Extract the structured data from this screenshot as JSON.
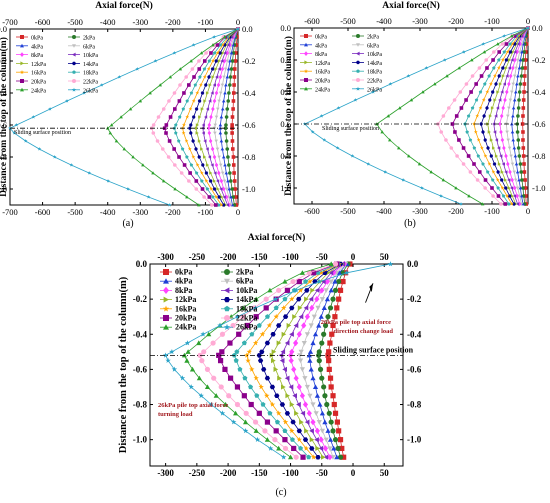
{
  "colors": [
    "#d62728",
    "#2a7a2a",
    "#1f3fd6",
    "#c0c0c0",
    "#ff44ff",
    "#7b2cbf",
    "#9ab82b",
    "#00008b",
    "#ffa500",
    "#36b0b0",
    "#8b008b",
    "#ffaad4",
    "#2ca02c",
    "#2aa3c8",
    "#000080",
    "#d4a017"
  ],
  "chart_data": [
    {
      "id": "a",
      "type": "line",
      "caption": "(a)",
      "xlabel": "Axial force(N)",
      "ylabel": "Distance from the top of the column(m)",
      "xlim": [
        -700,
        0
      ],
      "ylim": [
        0,
        1.1
      ],
      "xticks": [
        -700,
        -600,
        -500,
        -400,
        -300,
        -200,
        -100,
        0
      ],
      "xtick_labels": [
        "-700",
        "-600",
        "-500",
        "-400",
        "-300",
        "-200",
        "-100",
        "0"
      ],
      "yticks": [
        0,
        0.2,
        0.4,
        0.6,
        0.8,
        1.0
      ],
      "ytick_labels_left": [
        "0.0",
        "0.2",
        "0.4",
        "0.6",
        "0.8",
        "1.0"
      ],
      "ytick_labels_right": [
        "0.0",
        "-0.2",
        "-0.4",
        "-0.6",
        "-0.8",
        "-1.0"
      ],
      "sliding_y": 0.62,
      "sliding_label": "Sliding surface position",
      "series_names": [
        "0kPa",
        "2kPa",
        "4kPa",
        "6kPa",
        "8kPa",
        "10kPa",
        "12kPa",
        "14kPa",
        "16kPa",
        "18kPa",
        "20kPa",
        "22kPa",
        "24kPa",
        "26kPa"
      ],
      "peaks": [
        -18,
        -38,
        -55,
        -72,
        -90,
        -108,
        -128,
        -148,
        -170,
        -195,
        -225,
        -265,
        -400,
        -700
      ],
      "y_depths": [
        0,
        0.05,
        0.1,
        0.15,
        0.2,
        0.25,
        0.3,
        0.35,
        0.4,
        0.45,
        0.5,
        0.55,
        0.6,
        0.62,
        0.65,
        0.7,
        0.75,
        0.8,
        0.85,
        0.9,
        0.95,
        1.0,
        1.05,
        1.1
      ]
    },
    {
      "id": "b",
      "type": "line",
      "caption": "(b)",
      "xlabel": "Axial force(N)",
      "ylabel": "Distance from the top of the column(m)",
      "xlim": [
        -650,
        0
      ],
      "ylim": [
        0,
        1.1
      ],
      "xticks": [
        -600,
        -500,
        -400,
        -300,
        -200,
        -100,
        0
      ],
      "xtick_labels": [
        "-600",
        "-500",
        "-400",
        "-300",
        "-200",
        "-100",
        "0"
      ],
      "yticks": [
        0,
        0.2,
        0.4,
        0.6,
        0.8,
        1.0
      ],
      "ytick_labels_left": [
        "0.0",
        "0.2",
        "0.4",
        "0.6",
        "0.8",
        "1.0"
      ],
      "ytick_labels_right": [
        "0.0",
        "-0.2",
        "-0.4",
        "-0.6",
        "-0.8",
        "-1.0"
      ],
      "sliding_y": 0.6,
      "sliding_label": "Sliding surface position",
      "series_names": [
        "0kPa",
        "2kPa",
        "4kPa",
        "6kPa",
        "8kPa",
        "10kPa",
        "12kPa",
        "14kPa",
        "16kPa",
        "18kPa",
        "20kPa",
        "22kPa",
        "24kPa",
        "26kPa"
      ],
      "peaks": [
        -15,
        -30,
        -45,
        -60,
        -78,
        -95,
        -112,
        -130,
        -150,
        -175,
        -210,
        -250,
        -420,
        -620
      ],
      "y_depths": [
        0,
        0.05,
        0.1,
        0.15,
        0.2,
        0.25,
        0.3,
        0.35,
        0.4,
        0.45,
        0.5,
        0.55,
        0.6,
        0.65,
        0.7,
        0.75,
        0.8,
        0.85,
        0.9,
        0.95,
        1.0,
        1.05,
        1.1
      ]
    },
    {
      "id": "c",
      "type": "line",
      "caption": "(c)",
      "xlabel": "Axial force(N)",
      "ylabel": "Distance from the top of the column(m)",
      "xlim": [
        -325,
        80
      ],
      "ylim": [
        0,
        1.15
      ],
      "xticks": [
        -300,
        -250,
        -200,
        -150,
        -100,
        -50,
        0,
        50
      ],
      "xtick_labels": [
        "-300",
        "-250",
        "-200",
        "-150",
        "-100",
        "-50",
        "0",
        "50"
      ],
      "yticks": [
        0,
        0.2,
        0.4,
        0.6,
        0.8,
        1.0
      ],
      "ytick_labels_left": [
        "0.0",
        "-0.2",
        "-0.4",
        "-0.6",
        "-0.8",
        "-1.0"
      ],
      "ytick_labels_right": [
        "0.0",
        "-0.2",
        "-0.4",
        "-0.6",
        "-0.8",
        "-1.0"
      ],
      "sliding_y": 0.52,
      "sliding_label": "Sliding surface position",
      "series_names": [
        "0kPa",
        "2kPa",
        "4kPa",
        "6kPa",
        "8kPa",
        "10kPa",
        "12kPa",
        "14kPa",
        "16kPa",
        "18kPa",
        "20kPa",
        "22kPa",
        "24kPa",
        "26kPa"
      ],
      "peaks": [
        -40,
        -55,
        -70,
        -85,
        -100,
        -115,
        -130,
        -150,
        -170,
        -190,
        -215,
        -245,
        -270,
        -300
      ],
      "top_values": [
        -5,
        -8,
        -10,
        -12,
        -14,
        -16,
        -18,
        -20,
        -22,
        -24,
        -26,
        -28,
        -35,
        60
      ],
      "y_depths": [
        0,
        0.05,
        0.1,
        0.15,
        0.2,
        0.25,
        0.3,
        0.35,
        0.4,
        0.45,
        0.5,
        0.52,
        0.55,
        0.6,
        0.65,
        0.7,
        0.75,
        0.8,
        0.85,
        0.9,
        0.95,
        1.0,
        1.05,
        1.1
      ],
      "annotations": [
        {
          "text": "26kPa pile top axial force",
          "color": "red"
        },
        {
          "text": "direction change load",
          "color": "red"
        },
        {
          "text": "26kPa pile top axial force",
          "color": "red"
        },
        {
          "text": "turning load",
          "color": "red"
        }
      ]
    }
  ]
}
